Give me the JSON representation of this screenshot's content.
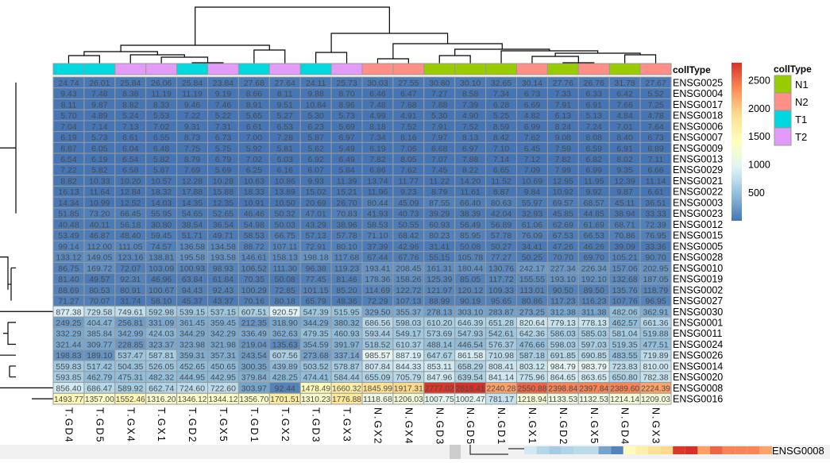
{
  "chart_data": {
    "type": "heatmap",
    "columns": [
      "T.GD4",
      "T.GD5",
      "T.GX4",
      "T.GX1",
      "T.GD2",
      "T.GX5",
      "T.GD1",
      "T.GX2",
      "T.GD3",
      "T.GX3",
      "N.GX2",
      "N.GX4",
      "N.GD3",
      "N.GD5",
      "N.GD1",
      "N.GX1",
      "N.GD2",
      "N.GX5",
      "N.GD4",
      "N.GX3"
    ],
    "column_annotation": {
      "title": "collType",
      "values": [
        "T1",
        "T1",
        "T2",
        "T2",
        "T1",
        "T2",
        "T1",
        "T2",
        "T1",
        "T2",
        "N2",
        "N2",
        "N1",
        "N1",
        "N1",
        "N2",
        "N1",
        "N2",
        "N1",
        "N2"
      ],
      "legend": [
        {
          "label": "N1",
          "color": "#99CC00"
        },
        {
          "label": "N2",
          "color": "#FF8F87"
        },
        {
          "label": "T1",
          "color": "#00D8E0"
        },
        {
          "label": "T2",
          "color": "#E29BF7"
        }
      ]
    },
    "rows": [
      "ENSG0025",
      "ENSG0004",
      "ENSG0017",
      "ENSG0018",
      "ENSG0006",
      "ENSG0007",
      "ENSG0009",
      "ENSG0013",
      "ENSG0029",
      "ENSG0021",
      "ENSG0022",
      "ENSG0003",
      "ENSG0023",
      "ENSG0012",
      "ENSG0015",
      "ENSG0005",
      "ENSG0028",
      "ENSG0010",
      "ENSG0019",
      "ENSG0002",
      "ENSG0027",
      "ENSG0030",
      "ENSG0001",
      "ENSG0011",
      "ENSG0024",
      "ENSG0026",
      "ENSG0014",
      "ENSG0020",
      "ENSG0008",
      "ENSG0016"
    ],
    "values": [
      [
        24.74,
        26.01,
        25.84,
        26.06,
        25.84,
        23.84,
        27.68,
        27.64,
        24.11,
        25.73,
        30.03,
        27.55,
        30.8,
        30.1,
        32.65,
        30.14,
        27.76,
        26.76,
        31.78,
        27.67
      ],
      [
        9.43,
        7.48,
        8.38,
        11.19,
        11.19,
        9.19,
        8.66,
        8.11,
        9.88,
        8.7,
        6.46,
        6.47,
        7.27,
        8.58,
        7.34,
        6.73,
        7.33,
        6.33,
        6.42,
        5.52
      ],
      [
        8.11,
        9.87,
        8.82,
        8.33,
        9.46,
        7.46,
        8.91,
        9.51,
        10.84,
        8.96,
        7.48,
        7.68,
        7.88,
        7.39,
        6.28,
        6.69,
        7.91,
        6.91,
        7.66,
        7.25
      ],
      [
        5.7,
        4.89,
        5.24,
        5.53,
        7.22,
        5.22,
        5.65,
        5.27,
        5.3,
        5.73,
        4.99,
        4.91,
        5.3,
        4.9,
        5.25,
        4.82,
        6.13,
        5.13,
        4.84,
        4.78
      ],
      [
        7.04,
        7.14,
        7.13,
        7.02,
        9.31,
        7.31,
        6.61,
        6.53,
        6.23,
        5.69,
        8.18,
        7.52,
        7.91,
        7.52,
        8.59,
        6.99,
        8.24,
        7.24,
        7.01,
        7.64
      ],
      [
        6.19,
        5.73,
        6.61,
        6.55,
        8.73,
        6.73,
        7.0,
        7.28,
        5.87,
        6.97,
        7.34,
        8.16,
        7.97,
        8.13,
        8.42,
        7.62,
        9.08,
        8.08,
        8.4,
        6.73
      ],
      [
        6.87,
        6.05,
        6.04,
        6.48,
        7.75,
        5.75,
        5.92,
        5.81,
        5.62,
        5.49,
        6.19,
        7.06,
        6.68,
        6.97,
        7.1,
        6.45,
        7.59,
        6.59,
        6.91,
        6.89
      ],
      [
        6.54,
        6.19,
        6.54,
        5.82,
        8.79,
        6.79,
        7.02,
        6.03,
        6.92,
        6.49,
        7.82,
        8.05,
        7.07,
        7.88,
        7.14,
        7.12,
        7.82,
        6.82,
        8.02,
        7.11
      ],
      [
        7.22,
        5.82,
        6.58,
        5.87,
        7.69,
        5.69,
        6.25,
        6.16,
        6.07,
        5.84,
        6.86,
        7.62,
        7.45,
        8.22,
        6.65,
        7.09,
        7.99,
        6.99,
        9.35,
        6.66
      ],
      [
        8.82,
        10.33,
        10.2,
        10.57,
        12.28,
        10.28,
        10.63,
        10.86,
        9.93,
        11.39,
        13.74,
        11.77,
        11.22,
        14.2,
        11.52,
        10.69,
        12.95,
        11.95,
        12.39,
        11.14
      ],
      [
        16.13,
        11.64,
        12.84,
        18.32,
        17.88,
        15.88,
        18.33,
        13.89,
        15.02,
        15.21,
        11.96,
        9.23,
        8.79,
        11.61,
        8.87,
        9.84,
        10.92,
        9.92,
        9.87,
        6.61
      ],
      [
        14.34,
        10.99,
        12.52,
        14.03,
        14.35,
        12.35,
        10.91,
        10.5,
        20.69,
        26.7,
        80.44,
        45.09,
        87.55,
        66.4,
        80.63,
        55.97,
        69.57,
        68.57,
        45.11,
        36.51
      ],
      [
        51.85,
        73.2,
        66.45,
        55.95,
        54.65,
        52.65,
        46.46,
        50.32,
        47.01,
        70.83,
        41.93,
        40.73,
        39.29,
        38.39,
        42.04,
        32.93,
        45.85,
        44.85,
        38.94,
        33.33
      ],
      [
        40.48,
        40.11,
        56.18,
        30.8,
        38.54,
        36.54,
        54.98,
        50.03,
        43.29,
        38.96,
        58.53,
        50.55,
        60.93,
        56.49,
        56.89,
        61.06,
        62.69,
        61.69,
        68.71,
        72.39
      ],
      [
        53.49,
        46.87,
        48.4,
        59.45,
        51.71,
        49.71,
        58.53,
        66.75,
        57.13,
        57.78,
        71.1,
        68.42,
        80.23,
        85.95,
        57.78,
        76.09,
        67.53,
        66.53,
        70.86,
        76.95
      ],
      [
        99.14,
        112.0,
        111.05,
        74.57,
        136.58,
        134.58,
        88.72,
        107.11,
        72.91,
        80.1,
        37.39,
        42.96,
        31.41,
        50.08,
        50.27,
        34.41,
        47.26,
        46.26,
        39.09,
        33.36
      ],
      [
        133.12,
        149.05,
        123.16,
        138.81,
        195.58,
        193.58,
        146.61,
        158.13,
        198.18,
        117.68,
        67.44,
        67.76,
        55.15,
        105.78,
        77.27,
        50.25,
        70.7,
        69.7,
        105.21,
        90.7
      ],
      [
        86.75,
        169.72,
        72.07,
        103.09,
        100.93,
        98.93,
        106.52,
        111.3,
        96.38,
        119.23,
        193.41,
        208.45,
        161.31,
        180.44,
        130.76,
        242.17,
        227.34,
        226.34,
        157.06,
        202.95
      ],
      [
        81.4,
        49.57,
        92.31,
        46.96,
        63.84,
        61.84,
        70.35,
        50.08,
        77.45,
        81.46,
        178.36,
        158.26,
        125.39,
        85.05,
        117.72,
        155.55,
        193.1,
        192.1,
        132.68,
        187.05
      ],
      [
        88.69,
        80.53,
        80.91,
        100.67,
        94.43,
        92.43,
        100.29,
        72.85,
        101.15,
        85.2,
        114.69,
        122.72,
        121.97,
        120.12,
        109.33,
        113.01,
        90.5,
        89.5,
        135.76,
        118.79
      ],
      [
        71.27,
        70.07,
        31.74,
        58.1,
        45.37,
        43.37,
        70.16,
        80.18,
        65.79,
        48.36,
        72.29,
        107.13,
        88.99,
        90.19,
        95.65,
        80.86,
        117.23,
        116.23,
        107.76,
        96.95
      ],
      [
        877.38,
        729.58,
        749.61,
        592.98,
        539.15,
        537.15,
        607.51,
        920.57,
        547.39,
        515.95,
        329.5,
        355.37,
        278.13,
        303.1,
        283.87,
        273.25,
        312.38,
        311.38,
        482.06,
        362.91
      ],
      [
        249.25,
        404.47,
        256.81,
        331.09,
        361.45,
        359.45,
        212.35,
        318.9,
        344.29,
        380.32,
        686.56,
        598.03,
        610.2,
        646.39,
        651.28,
        820.64,
        779.13,
        778.13,
        462.57,
        661.36
      ],
      [
        332.29,
        385.84,
        342.99,
        424.03,
        344.29,
        342.29,
        336.49,
        362.63,
        479.35,
        460.93,
        593.44,
        549.17,
        573.69,
        547.93,
        542.61,
        642.36,
        586.03,
        585.03,
        581.04,
        519.88
      ],
      [
        321.44,
        309.77,
        228.85,
        323.37,
        323.98,
        321.98,
        219.04,
        135.63,
        354.59,
        391.97,
        518.52,
        610.37,
        488.14,
        446.54,
        576.37,
        476.66,
        598.03,
        597.03,
        519.35,
        477.51
      ],
      [
        198.83,
        189.1,
        537.47,
        587.81,
        359.31,
        357.31,
        243.54,
        607.56,
        273.68,
        337.14,
        985.57,
        887.19,
        647.67,
        861.58,
        710.98,
        587.18,
        691.85,
        690.85,
        483.55,
        719.89
      ],
      [
        559.83,
        517.42,
        504.35,
        526.05,
        452.65,
        450.65,
        300.35,
        439.89,
        503.52,
        578.87,
        807.84,
        844.33,
        853.11,
        658.29,
        808.41,
        803.12,
        984.79,
        983.79,
        723.83,
        810.0
      ],
      [
        593.85,
        462.79,
        475.31,
        482.32,
        444.95,
        442.95,
        379.84,
        428.25,
        474.41,
        584.44,
        655.09,
        705.79,
        847.96,
        639.54,
        841.14,
        775.96,
        864.65,
        863.65,
        650.8,
        782.38
      ],
      [
        856.4,
        686.47,
        589.92,
        662.74,
        724.6,
        722.6,
        303.97,
        92.44,
        1478.49,
        1660.32,
        1845.99,
        1917.31,
        2777.02,
        2818.41,
        2240.28,
        2550.88,
        2398.84,
        2397.84,
        2389.6,
        2224.39
      ],
      [
        1493.77,
        1357.0,
        1552.46,
        1316.2,
        1346.12,
        1344.12,
        1356.7,
        1701.51,
        1310.23,
        1776.88,
        1118.68,
        1206.03,
        1007.75,
        1002.47,
        781.17,
        1218.94,
        1133.53,
        1132.53,
        1214.14,
        1209.03
      ]
    ],
    "color_scale": {
      "colors": [
        "#4575B4",
        "#91BFDB",
        "#E0F3F8",
        "#FFFFBF",
        "#FEE090",
        "#FC8D59",
        "#D73027"
      ],
      "ticks": [
        500,
        1000,
        1500,
        2000,
        2500
      ]
    },
    "row_dendrogram": true,
    "column_dendrogram": true,
    "cell_labels": true
  },
  "background_fragment": {
    "row_label": "ENSG0008"
  }
}
